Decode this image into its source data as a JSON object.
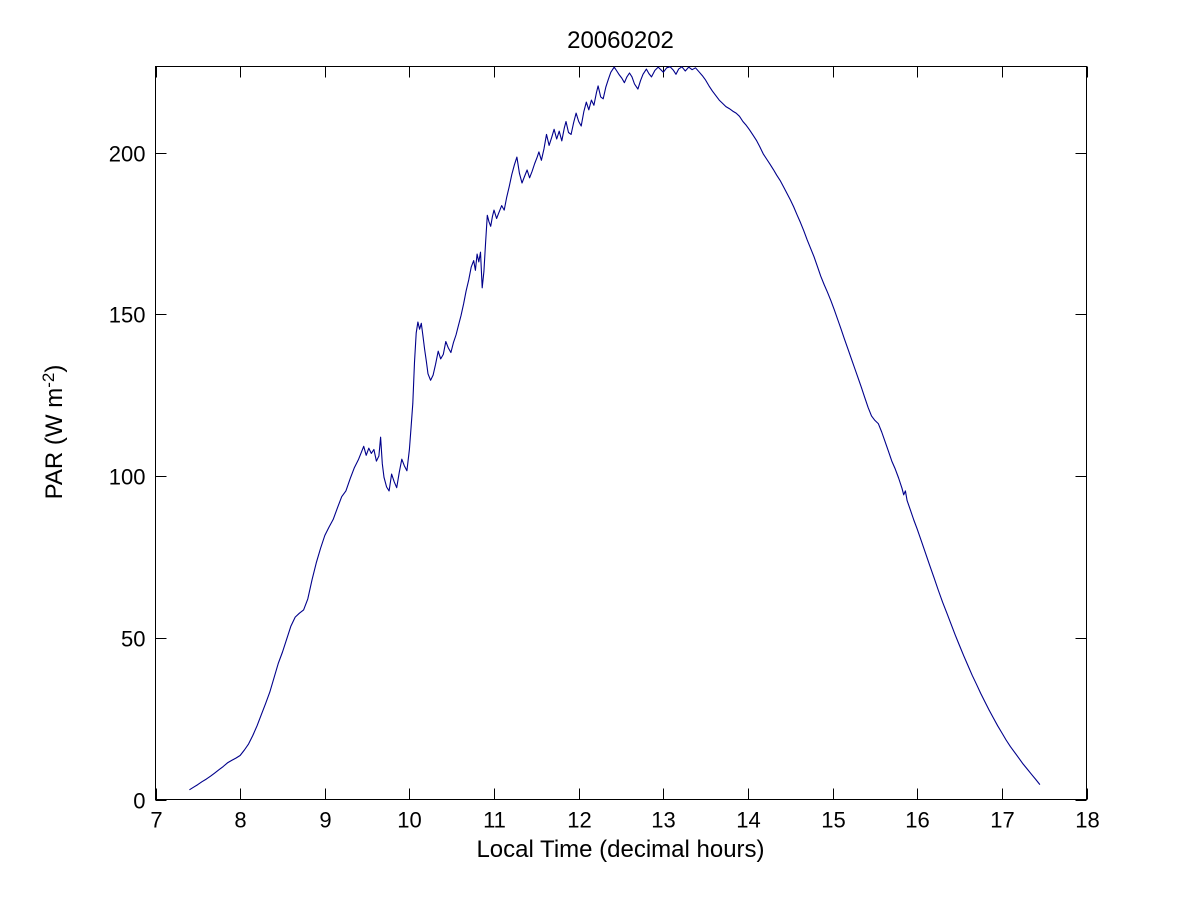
{
  "chart_data": {
    "type": "line",
    "title": "20060202",
    "xlabel": "Local Time (decimal hours)",
    "ylabel_prefix": "PAR (W m",
    "ylabel_sup": "-2",
    "ylabel_suffix": ")",
    "xlim": [
      7,
      18
    ],
    "ylim": [
      0,
      226.6
    ],
    "xticks": [
      7,
      8,
      9,
      10,
      11,
      12,
      13,
      14,
      15,
      16,
      17,
      18
    ],
    "xtick_labels": [
      "7",
      "8",
      "9",
      "10",
      "11",
      "12",
      "13",
      "14",
      "15",
      "16",
      "17",
      "18"
    ],
    "yticks": [
      0,
      50,
      100,
      150,
      200
    ],
    "ytick_labels": [
      "0",
      "50",
      "100",
      "150",
      "200"
    ],
    "grid": false,
    "legend": "none",
    "box": true,
    "tick_direction": "in",
    "line_color": "#00008B",
    "axis_color": "#000000",
    "background_color": "#ffffff",
    "series": [
      {
        "name": "PAR",
        "points": [
          [
            7.4,
            3.0
          ],
          [
            7.45,
            3.8
          ],
          [
            7.5,
            4.6
          ],
          [
            7.55,
            5.5
          ],
          [
            7.6,
            6.3
          ],
          [
            7.65,
            7.2
          ],
          [
            7.7,
            8.2
          ],
          [
            7.75,
            9.2
          ],
          [
            7.8,
            10.2
          ],
          [
            7.85,
            11.3
          ],
          [
            7.9,
            12.1
          ],
          [
            7.95,
            12.8
          ],
          [
            8.0,
            13.6
          ],
          [
            8.05,
            15.3
          ],
          [
            8.1,
            17.2
          ],
          [
            8.15,
            19.8
          ],
          [
            8.2,
            22.8
          ],
          [
            8.25,
            26.2
          ],
          [
            8.3,
            29.6
          ],
          [
            8.35,
            33.2
          ],
          [
            8.4,
            37.6
          ],
          [
            8.45,
            42.0
          ],
          [
            8.5,
            45.6
          ],
          [
            8.55,
            49.6
          ],
          [
            8.6,
            53.6
          ],
          [
            8.65,
            56.4
          ],
          [
            8.7,
            57.6
          ],
          [
            8.75,
            58.6
          ],
          [
            8.8,
            62.0
          ],
          [
            8.85,
            68.0
          ],
          [
            8.9,
            73.2
          ],
          [
            8.95,
            77.6
          ],
          [
            9.0,
            81.6
          ],
          [
            9.05,
            84.2
          ],
          [
            9.1,
            86.6
          ],
          [
            9.15,
            90.2
          ],
          [
            9.2,
            93.6
          ],
          [
            9.25,
            95.4
          ],
          [
            9.3,
            99.2
          ],
          [
            9.35,
            102.6
          ],
          [
            9.4,
            105.2
          ],
          [
            9.43,
            107.2
          ],
          [
            9.46,
            109.2
          ],
          [
            9.49,
            106.4
          ],
          [
            9.52,
            108.6
          ],
          [
            9.55,
            107.0
          ],
          [
            9.58,
            108.2
          ],
          [
            9.61,
            104.6
          ],
          [
            9.64,
            106.2
          ],
          [
            9.66,
            112.0
          ],
          [
            9.68,
            103.8
          ],
          [
            9.7,
            99.6
          ],
          [
            9.73,
            96.6
          ],
          [
            9.76,
            95.4
          ],
          [
            9.79,
            100.6
          ],
          [
            9.82,
            98.2
          ],
          [
            9.85,
            96.4
          ],
          [
            9.88,
            101.2
          ],
          [
            9.91,
            105.2
          ],
          [
            9.94,
            103.2
          ],
          [
            9.97,
            101.6
          ],
          [
            10.0,
            108.2
          ],
          [
            10.02,
            115.2
          ],
          [
            10.04,
            122.4
          ],
          [
            10.06,
            135.2
          ],
          [
            10.08,
            144.2
          ],
          [
            10.1,
            147.6
          ],
          [
            10.12,
            145.4
          ],
          [
            10.14,
            147.2
          ],
          [
            10.16,
            143.2
          ],
          [
            10.18,
            139.2
          ],
          [
            10.2,
            135.6
          ],
          [
            10.22,
            131.6
          ],
          [
            10.25,
            129.6
          ],
          [
            10.28,
            131.2
          ],
          [
            10.31,
            134.6
          ],
          [
            10.34,
            138.6
          ],
          [
            10.37,
            136.2
          ],
          [
            10.4,
            137.6
          ],
          [
            10.43,
            141.6
          ],
          [
            10.46,
            139.6
          ],
          [
            10.49,
            138.2
          ],
          [
            10.52,
            141.2
          ],
          [
            10.55,
            143.6
          ],
          [
            10.58,
            146.6
          ],
          [
            10.61,
            149.6
          ],
          [
            10.64,
            153.2
          ],
          [
            10.67,
            157.2
          ],
          [
            10.7,
            160.6
          ],
          [
            10.73,
            164.6
          ],
          [
            10.76,
            166.6
          ],
          [
            10.78,
            163.6
          ],
          [
            10.8,
            168.6
          ],
          [
            10.82,
            166.2
          ],
          [
            10.84,
            169.2
          ],
          [
            10.86,
            158.2
          ],
          [
            10.88,
            163.2
          ],
          [
            10.9,
            172.2
          ],
          [
            10.92,
            180.6
          ],
          [
            10.94,
            178.6
          ],
          [
            10.96,
            177.2
          ],
          [
            10.98,
            180.2
          ],
          [
            11.0,
            182.2
          ],
          [
            11.03,
            179.6
          ],
          [
            11.06,
            181.6
          ],
          [
            11.09,
            183.6
          ],
          [
            11.12,
            182.2
          ],
          [
            11.15,
            186.2
          ],
          [
            11.18,
            189.6
          ],
          [
            11.21,
            193.2
          ],
          [
            11.24,
            196.2
          ],
          [
            11.27,
            198.6
          ],
          [
            11.3,
            193.6
          ],
          [
            11.33,
            190.6
          ],
          [
            11.36,
            192.6
          ],
          [
            11.39,
            194.6
          ],
          [
            11.42,
            192.2
          ],
          [
            11.45,
            194.2
          ],
          [
            11.48,
            196.6
          ],
          [
            11.51,
            198.6
          ],
          [
            11.53,
            200.2
          ],
          [
            11.56,
            197.6
          ],
          [
            11.59,
            201.2
          ],
          [
            11.62,
            205.6
          ],
          [
            11.65,
            202.2
          ],
          [
            11.68,
            204.6
          ],
          [
            11.71,
            207.2
          ],
          [
            11.74,
            204.2
          ],
          [
            11.77,
            206.6
          ],
          [
            11.8,
            203.6
          ],
          [
            11.83,
            207.6
          ],
          [
            11.85,
            209.6
          ],
          [
            11.88,
            206.2
          ],
          [
            11.91,
            205.6
          ],
          [
            11.94,
            209.2
          ],
          [
            11.97,
            212.2
          ],
          [
            12.0,
            209.6
          ],
          [
            12.03,
            208.2
          ],
          [
            12.06,
            212.6
          ],
          [
            12.09,
            215.6
          ],
          [
            12.12,
            213.2
          ],
          [
            12.15,
            216.2
          ],
          [
            12.18,
            214.6
          ],
          [
            12.21,
            218.6
          ],
          [
            12.23,
            220.6
          ],
          [
            12.26,
            217.2
          ],
          [
            12.29,
            216.6
          ],
          [
            12.32,
            220.2
          ],
          [
            12.35,
            222.6
          ],
          [
            12.38,
            224.8
          ],
          [
            12.42,
            226.4
          ],
          [
            12.45,
            225.2
          ],
          [
            12.48,
            224.0
          ],
          [
            12.51,
            223.0
          ],
          [
            12.54,
            221.6
          ],
          [
            12.57,
            223.4
          ],
          [
            12.6,
            224.6
          ],
          [
            12.63,
            223.4
          ],
          [
            12.66,
            221.2
          ],
          [
            12.7,
            219.6
          ],
          [
            12.73,
            222.2
          ],
          [
            12.76,
            224.2
          ],
          [
            12.8,
            225.8
          ],
          [
            12.83,
            224.4
          ],
          [
            12.86,
            223.4
          ],
          [
            12.9,
            225.4
          ],
          [
            12.94,
            226.4
          ],
          [
            12.97,
            225.6
          ],
          [
            13.0,
            224.8
          ],
          [
            13.04,
            226.2
          ],
          [
            13.08,
            226.5
          ],
          [
            13.12,
            225.4
          ],
          [
            13.15,
            224.2
          ],
          [
            13.18,
            225.8
          ],
          [
            13.22,
            226.5
          ],
          [
            13.26,
            225.2
          ],
          [
            13.3,
            226.4
          ],
          [
            13.34,
            225.6
          ],
          [
            13.38,
            226.2
          ],
          [
            13.42,
            225.0
          ],
          [
            13.46,
            223.8
          ],
          [
            13.5,
            222.4
          ],
          [
            13.54,
            220.6
          ],
          [
            13.58,
            219.0
          ],
          [
            13.62,
            217.6
          ],
          [
            13.66,
            216.2
          ],
          [
            13.7,
            215.2
          ],
          [
            13.74,
            214.2
          ],
          [
            13.78,
            213.6
          ],
          [
            13.82,
            212.8
          ],
          [
            13.86,
            212.2
          ],
          [
            13.9,
            211.2
          ],
          [
            13.94,
            209.6
          ],
          [
            13.98,
            208.4
          ],
          [
            14.02,
            207.0
          ],
          [
            14.06,
            205.4
          ],
          [
            14.1,
            203.8
          ],
          [
            14.14,
            201.8
          ],
          [
            14.18,
            199.6
          ],
          [
            14.22,
            198.0
          ],
          [
            14.26,
            196.4
          ],
          [
            14.3,
            194.8
          ],
          [
            14.34,
            193.0
          ],
          [
            14.38,
            191.4
          ],
          [
            14.42,
            189.4
          ],
          [
            14.46,
            187.4
          ],
          [
            14.5,
            185.4
          ],
          [
            14.54,
            183.2
          ],
          [
            14.58,
            180.8
          ],
          [
            14.62,
            178.4
          ],
          [
            14.66,
            175.8
          ],
          [
            14.7,
            173.0
          ],
          [
            14.74,
            170.4
          ],
          [
            14.78,
            167.8
          ],
          [
            14.82,
            164.8
          ],
          [
            14.86,
            161.8
          ],
          [
            14.9,
            159.2
          ],
          [
            14.94,
            156.8
          ],
          [
            14.98,
            154.2
          ],
          [
            15.02,
            151.4
          ],
          [
            15.06,
            148.4
          ],
          [
            15.1,
            145.4
          ],
          [
            15.14,
            142.4
          ],
          [
            15.18,
            139.4
          ],
          [
            15.22,
            136.4
          ],
          [
            15.26,
            133.4
          ],
          [
            15.3,
            130.4
          ],
          [
            15.34,
            127.4
          ],
          [
            15.38,
            124.2
          ],
          [
            15.42,
            121.2
          ],
          [
            15.46,
            118.6
          ],
          [
            15.5,
            117.2
          ],
          [
            15.54,
            116.2
          ],
          [
            15.58,
            113.6
          ],
          [
            15.62,
            110.6
          ],
          [
            15.66,
            107.6
          ],
          [
            15.7,
            104.6
          ],
          [
            15.74,
            102.2
          ],
          [
            15.78,
            99.4
          ],
          [
            15.82,
            96.2
          ],
          [
            15.84,
            94.2
          ],
          [
            15.86,
            95.4
          ],
          [
            15.88,
            92.4
          ],
          [
            15.92,
            89.4
          ],
          [
            15.96,
            86.4
          ],
          [
            16.0,
            83.6
          ],
          [
            16.05,
            79.8
          ],
          [
            16.1,
            76.0
          ],
          [
            16.15,
            72.2
          ],
          [
            16.2,
            68.4
          ],
          [
            16.25,
            64.6
          ],
          [
            16.3,
            61.0
          ],
          [
            16.35,
            57.6
          ],
          [
            16.4,
            54.2
          ],
          [
            16.45,
            50.8
          ],
          [
            16.5,
            47.6
          ],
          [
            16.55,
            44.4
          ],
          [
            16.6,
            41.4
          ],
          [
            16.65,
            38.4
          ],
          [
            16.7,
            35.6
          ],
          [
            16.75,
            32.8
          ],
          [
            16.8,
            30.2
          ],
          [
            16.85,
            27.6
          ],
          [
            16.9,
            25.2
          ],
          [
            16.95,
            22.8
          ],
          [
            17.0,
            20.6
          ],
          [
            17.05,
            18.4
          ],
          [
            17.1,
            16.4
          ],
          [
            17.15,
            14.6
          ],
          [
            17.2,
            12.8
          ],
          [
            17.25,
            11.0
          ],
          [
            17.3,
            9.4
          ],
          [
            17.35,
            7.8
          ],
          [
            17.4,
            6.2
          ],
          [
            17.45,
            4.6
          ]
        ]
      }
    ]
  }
}
